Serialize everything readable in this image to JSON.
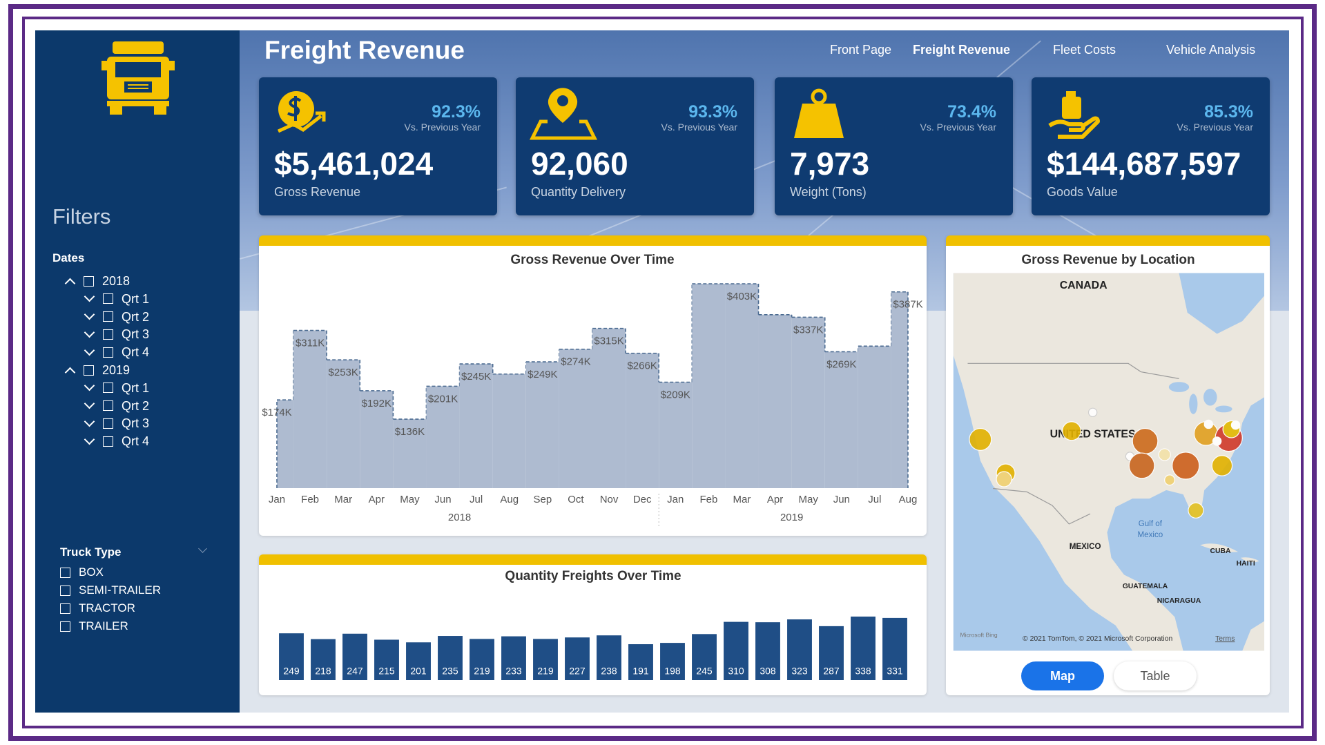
{
  "header": {
    "title": "Freight Revenue",
    "nav": [
      {
        "label": "Front Page",
        "active": false
      },
      {
        "label": "Freight Revenue",
        "active": true
      },
      {
        "label": "Fleet Costs",
        "active": false
      },
      {
        "label": "Vehicle Analysis",
        "active": false
      }
    ]
  },
  "sidebar": {
    "filters_title": "Filters",
    "dates": {
      "title": "Dates",
      "years": [
        {
          "label": "2018",
          "quarters": [
            "Qrt 1",
            "Qrt 2",
            "Qrt 3",
            "Qrt 4"
          ]
        },
        {
          "label": "2019",
          "quarters": [
            "Qrt 1",
            "Qrt 2",
            "Qrt 3",
            "Qrt 4"
          ]
        }
      ]
    },
    "truck_type": {
      "title": "Truck Type",
      "options": [
        "BOX",
        "SEMI-TRAILER",
        "TRACTOR",
        "TRAILER"
      ]
    }
  },
  "kpis": [
    {
      "value": "$5,461,024",
      "label": "Gross Revenue",
      "change": "92.3%",
      "change_label": "Vs. Previous Year"
    },
    {
      "value": "92,060",
      "label": "Quantity Delivery",
      "change": "93.3%",
      "change_label": "Vs. Previous Year"
    },
    {
      "value": "7,973",
      "label": "Weight (Tons)",
      "change": "73.4%",
      "change_label": "Vs. Previous Year"
    },
    {
      "value": "$144,687,597",
      "label": "Goods Value",
      "change": "85.3%",
      "change_label": "Vs. Previous Year"
    }
  ],
  "chart_data": [
    {
      "type": "area",
      "step": true,
      "title": "Gross Revenue Over Time",
      "color": "#aebbd0",
      "line_color": "#4a6a90",
      "category_groups": [
        {
          "label": "2018",
          "categories": [
            "Jan",
            "Feb",
            "Mar",
            "Apr",
            "May",
            "Jun",
            "Jul",
            "Aug",
            "Sep",
            "Oct",
            "Nov",
            "Dec"
          ]
        },
        {
          "label": "2019",
          "categories": [
            "Jan",
            "Feb",
            "Mar",
            "Apr",
            "May",
            "Jun",
            "Jul",
            "Aug"
          ]
        }
      ],
      "values": [
        174000,
        311000,
        253000,
        192000,
        136000,
        201000,
        245000,
        225000,
        249000,
        274000,
        315000,
        266000,
        209000,
        403000,
        403000,
        342000,
        337000,
        269000,
        280000,
        387000
      ],
      "value_labels": [
        "$174K",
        "$311K",
        "$253K",
        "$192K",
        "$136K",
        "$201K",
        "$245K",
        null,
        "$249K",
        "$274K",
        "$315K",
        "$266K",
        "$209K",
        null,
        "$403K",
        null,
        "$337K",
        "$269K",
        null,
        "$387K"
      ]
    },
    {
      "type": "bar",
      "title": "Quantity Freights Over Time",
      "color": "#1f4e86",
      "values": [
        249,
        218,
        247,
        215,
        201,
        235,
        219,
        233,
        219,
        227,
        238,
        191,
        198,
        245,
        310,
        308,
        323,
        287,
        338,
        331
      ]
    }
  ],
  "map": {
    "title": "Gross Revenue by Location",
    "labels": [
      "CANADA",
      "UNITED STATES",
      "Gulf of",
      "Mexico",
      "MEXICO",
      "CUBA",
      "HAITI",
      "GUATEMALA",
      "NICARAGUA"
    ],
    "provider": "Microsoft Bing",
    "attribution": "© 2021 TomTom, © 2021 Microsoft Corporation",
    "terms": "Terms",
    "buttons": [
      {
        "label": "Map",
        "active": true
      },
      {
        "label": "Table",
        "active": false
      }
    ]
  }
}
